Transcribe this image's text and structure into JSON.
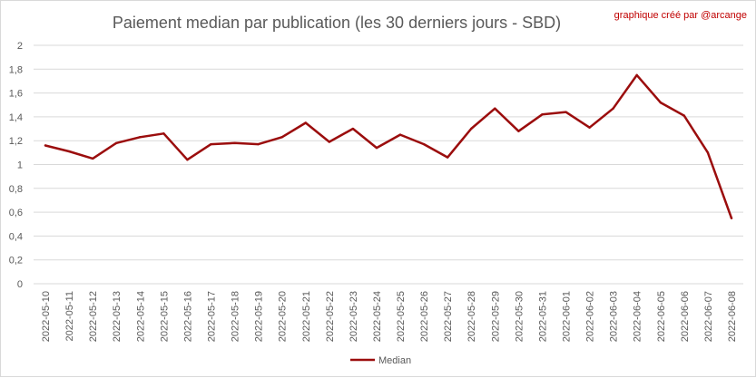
{
  "chart_data": {
    "type": "line",
    "title": "Paiement median par publication (les 30 derniers jours - SBD)",
    "credit": "graphique créé par @arcange",
    "xlabel": "",
    "ylabel": "",
    "ylim": [
      0,
      2
    ],
    "yticks": [
      "0",
      "0,2",
      "0,4",
      "0,6",
      "0,8",
      "1",
      "1,2",
      "1,4",
      "1,6",
      "1,8",
      "2"
    ],
    "grid": true,
    "legend": "bottom",
    "categories": [
      "2022-05-10",
      "2022-05-11",
      "2022-05-12",
      "2022-05-13",
      "2022-05-14",
      "2022-05-15",
      "2022-05-16",
      "2022-05-17",
      "2022-05-18",
      "2022-05-19",
      "2022-05-20",
      "2022-05-21",
      "2022-05-22",
      "2022-05-23",
      "2022-05-24",
      "2022-05-25",
      "2022-05-26",
      "2022-05-27",
      "2022-05-28",
      "2022-05-29",
      "2022-05-30",
      "2022-05-31",
      "2022-06-01",
      "2022-06-02",
      "2022-06-03",
      "2022-06-04",
      "2022-06-05",
      "2022-06-06",
      "2022-06-07",
      "2022-06-08"
    ],
    "series": [
      {
        "name": "Median",
        "color": "#9b0d0d",
        "values": [
          1.16,
          1.11,
          1.05,
          1.18,
          1.23,
          1.26,
          1.04,
          1.17,
          1.18,
          1.17,
          1.23,
          1.35,
          1.19,
          1.3,
          1.14,
          1.25,
          1.17,
          1.06,
          1.3,
          1.47,
          1.28,
          1.42,
          1.44,
          1.31,
          1.47,
          1.75,
          1.52,
          1.41,
          1.1,
          0.55
        ]
      }
    ]
  }
}
